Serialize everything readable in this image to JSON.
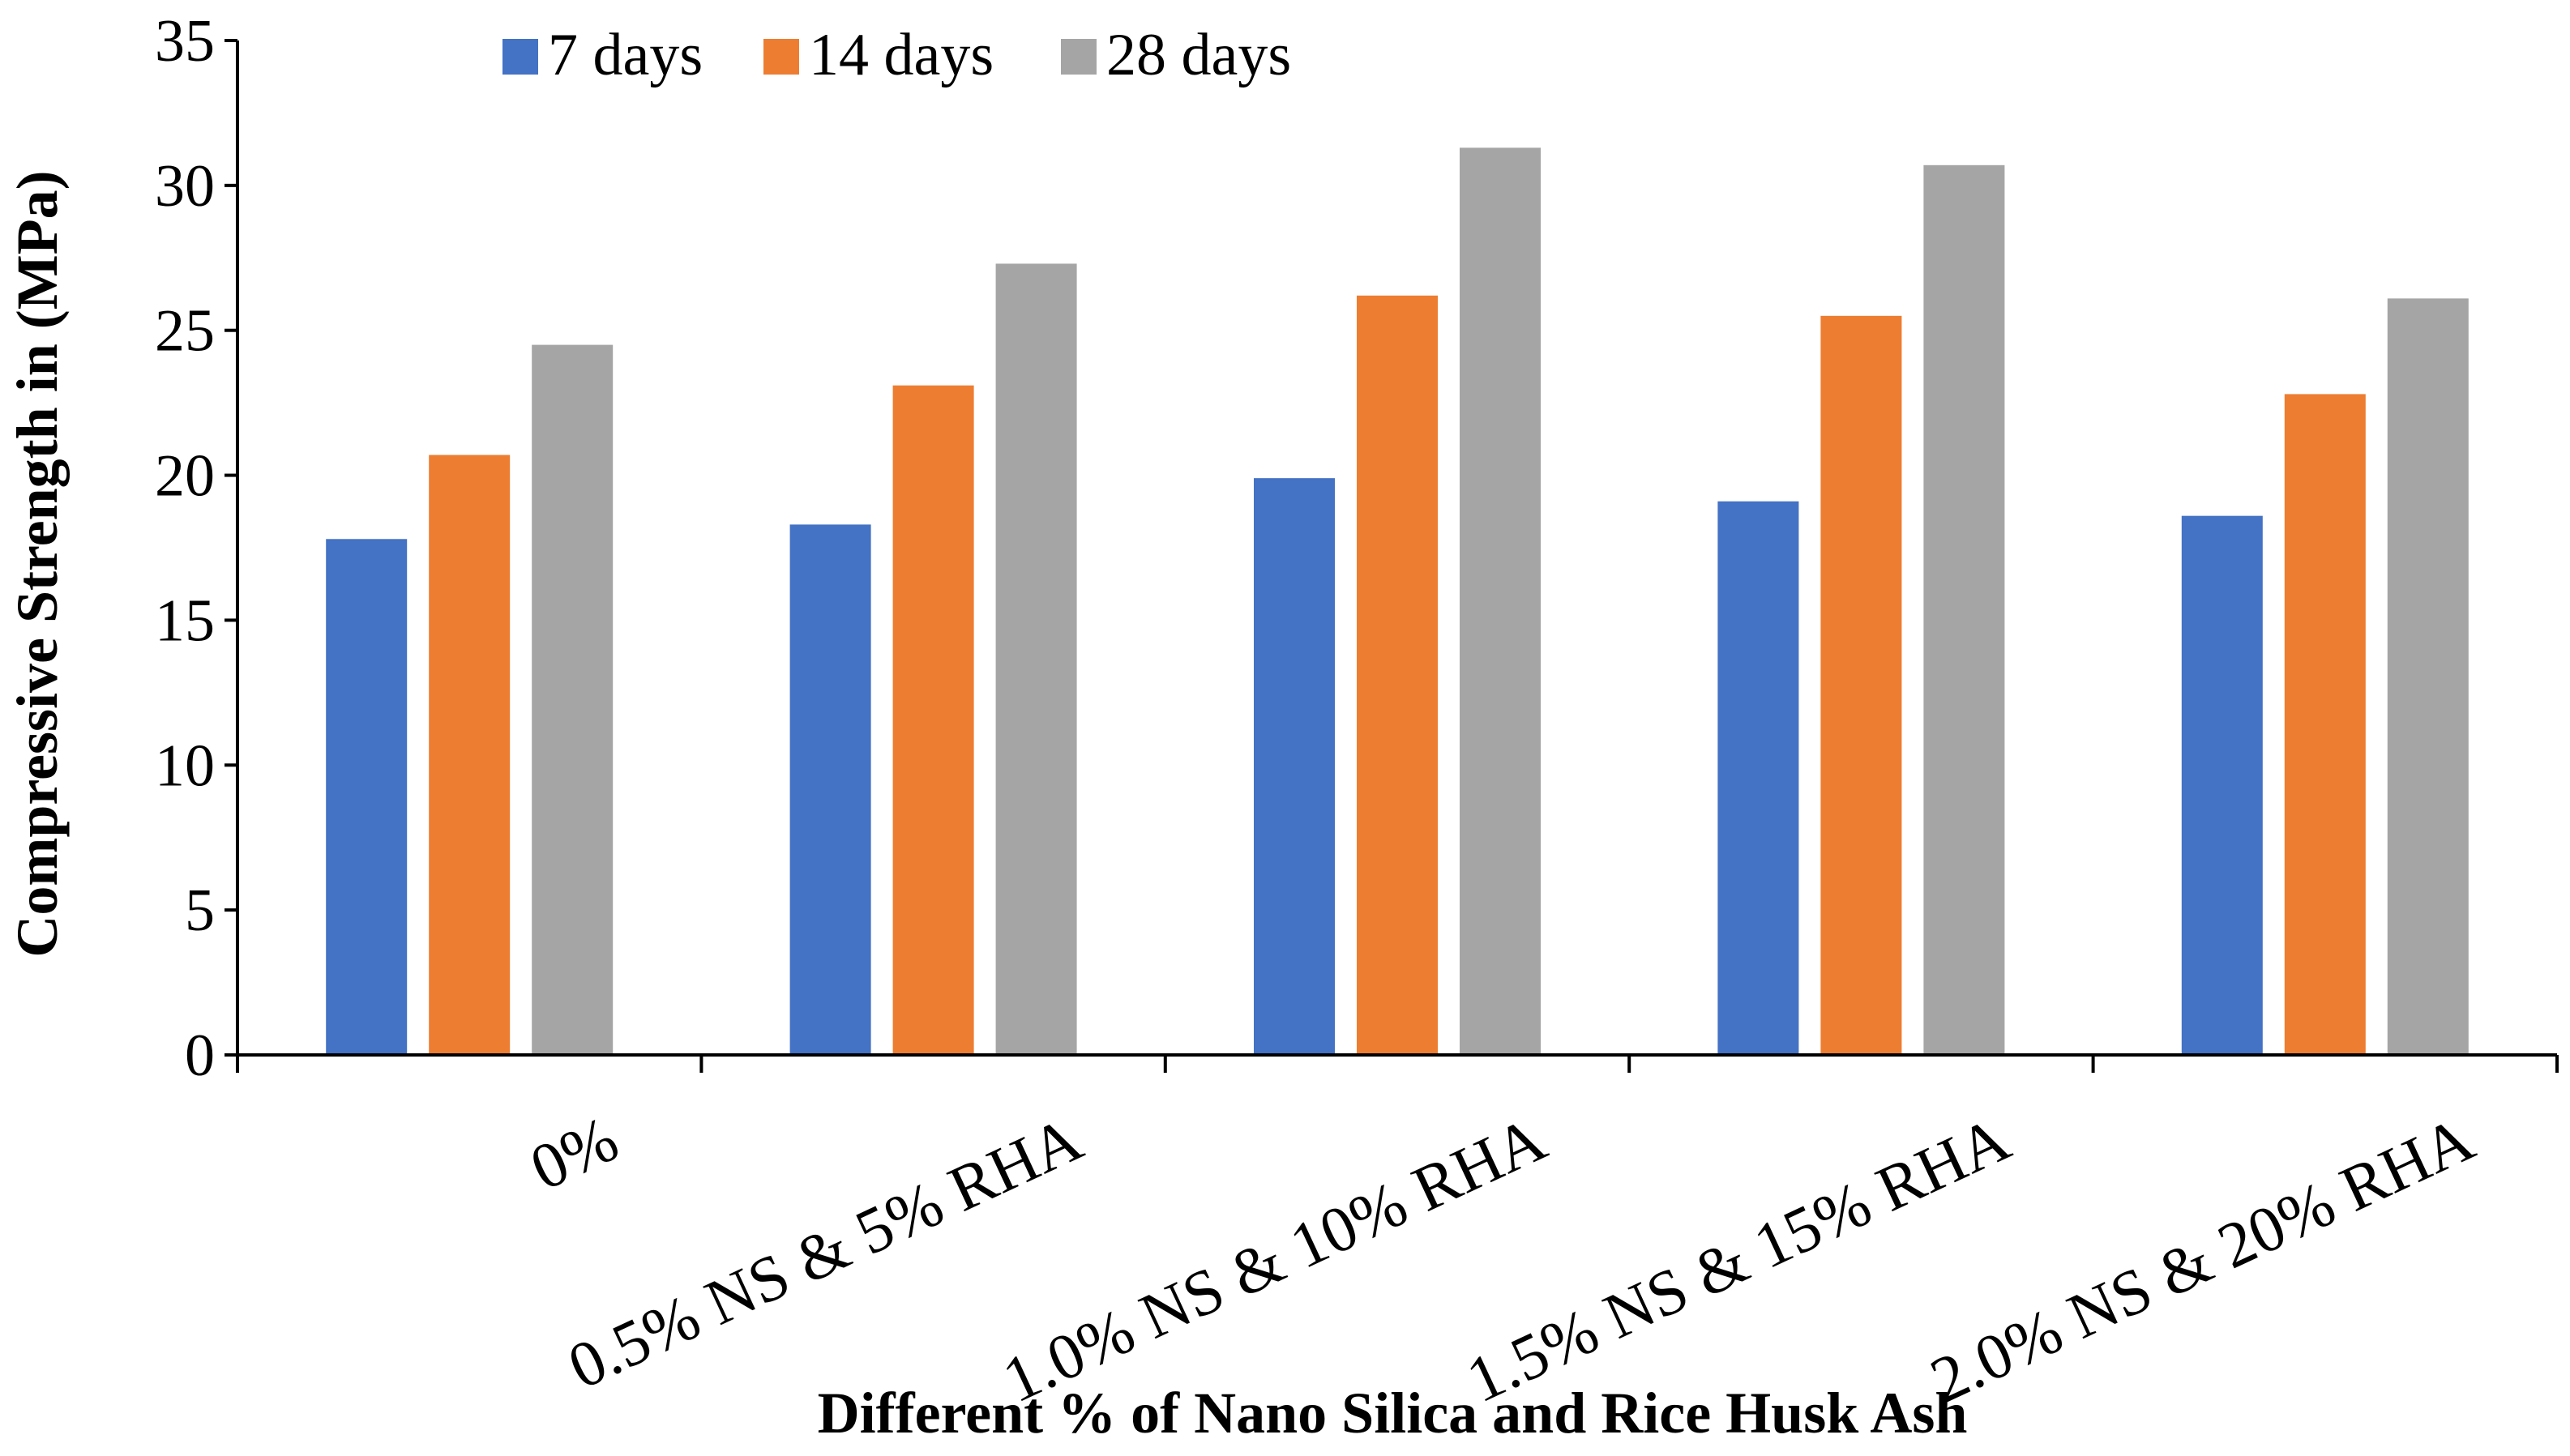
{
  "chart_data": {
    "type": "bar",
    "title": "",
    "xlabel": "Different % of Nano Silica and Rice Husk Ash",
    "ylabel": "Compressive Strength in (MPa)",
    "ylim": [
      0,
      35
    ],
    "yticks": [
      0,
      5,
      10,
      15,
      20,
      25,
      30,
      35
    ],
    "grid": false,
    "legend_position": "top-left",
    "categories": [
      "0%",
      "0.5% NS & 5% RHA",
      "1.0% NS & 10% RHA",
      "1.5% NS & 15% RHA",
      "2.0% NS & 20% RHA"
    ],
    "series": [
      {
        "name": "7 days",
        "color": "#4472C4",
        "values": [
          17.8,
          18.3,
          19.9,
          19.1,
          18.6
        ]
      },
      {
        "name": "14 days",
        "color": "#ED7D31",
        "values": [
          20.7,
          23.1,
          26.2,
          25.5,
          22.8
        ]
      },
      {
        "name": "28 days",
        "color": "#A5A5A5",
        "values": [
          24.5,
          27.3,
          31.3,
          30.7,
          26.1
        ]
      }
    ]
  }
}
